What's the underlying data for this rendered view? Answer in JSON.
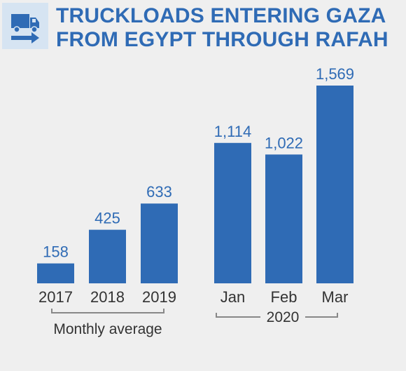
{
  "header": {
    "title_line1": "TRUCKLOADS ENTERING GAZA",
    "title_line2": "FROM EGYPT THROUGH RAFAH",
    "icon": "truck-arrow-icon"
  },
  "colors": {
    "bar": "#2f6bb5",
    "title": "#2f6bb5",
    "icon_bg": "#d6e4f2",
    "bracket": "#888888"
  },
  "chart_data": {
    "type": "bar",
    "title": "TRUCKLOADS ENTERING GAZA FROM EGYPT THROUGH RAFAH",
    "categories": [
      "2017",
      "2018",
      "2019",
      "Jan",
      "Feb",
      "Mar"
    ],
    "values": [
      158,
      425,
      633,
      1114,
      1022,
      1569
    ],
    "value_labels": [
      "158",
      "425",
      "633",
      "1,114",
      "1,022",
      "1,569"
    ],
    "groups": [
      {
        "label": "Monthly average",
        "categories": [
          "2017",
          "2018",
          "2019"
        ]
      },
      {
        "label": "2020",
        "categories": [
          "Jan",
          "Feb",
          "Mar"
        ]
      }
    ],
    "xlabel": "",
    "ylabel": "",
    "grid": false
  }
}
